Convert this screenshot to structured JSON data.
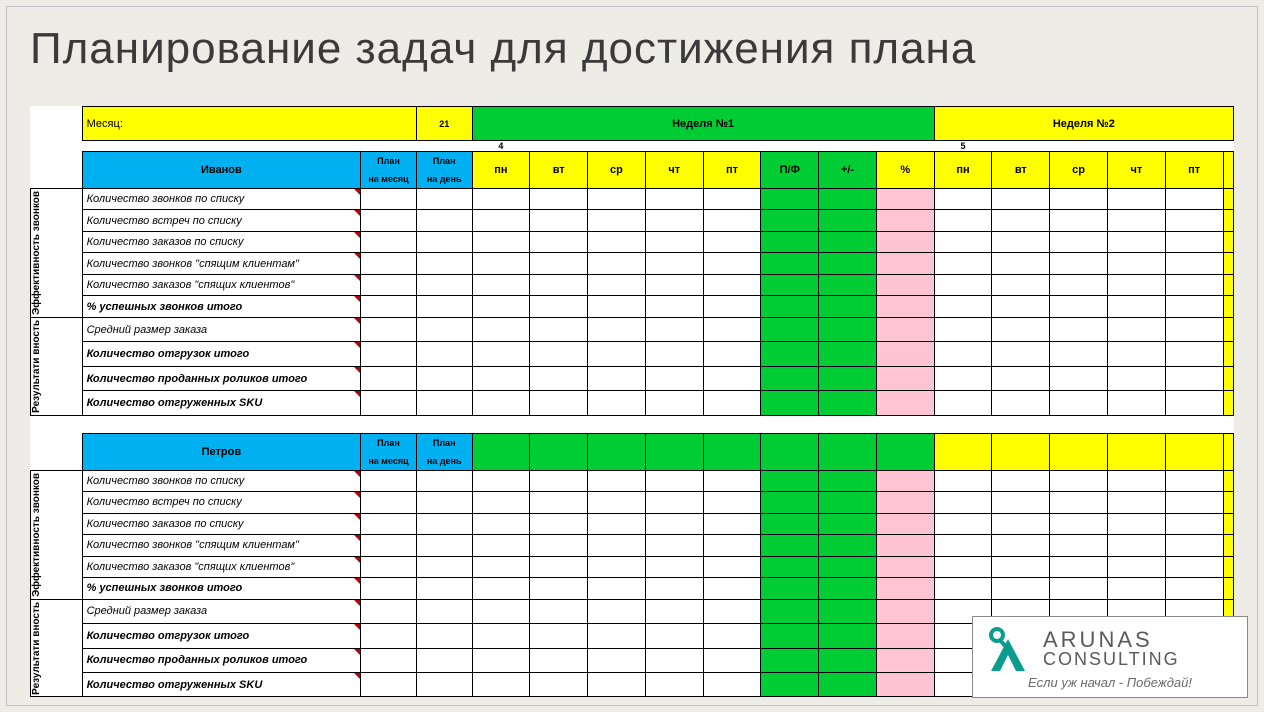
{
  "title": "Планирование задач для достижения плана",
  "header": {
    "month_label": "Месяц:",
    "days_value": "21",
    "week1_label": "Неделя №1",
    "week2_label": "Неделя №2",
    "week1_num": "4",
    "week2_num": "5",
    "plan_month": "План на месяц",
    "plan_day": "План на день",
    "days": [
      "пн",
      "вт",
      "ср",
      "чт",
      "пт"
    ],
    "pf": "П/Ф",
    "pm": "+/-",
    "pct": "%"
  },
  "colors": {
    "yellow": "#ffff00",
    "green": "#00cc33",
    "pink": "#ffc4d3",
    "cyan": "#00b0f0",
    "bg": "#eeece6"
  },
  "employees": [
    "Иванов",
    "Петров"
  ],
  "sections": [
    {
      "label": "Эффективность звонков",
      "metrics": [
        {
          "text": "Количество звонков по списку",
          "bold": false
        },
        {
          "text": "Количество встреч по списку",
          "bold": false
        },
        {
          "text": "Количество заказов по списку",
          "bold": false
        },
        {
          "text": "Количество звонков \"спящим клиентам\"",
          "bold": false
        },
        {
          "text": "Количество заказов \"спящих клиентов\"",
          "bold": false
        },
        {
          "text": "% успешных звонков итого",
          "bold": true
        }
      ]
    },
    {
      "label": "Результати вность",
      "metrics": [
        {
          "text": "Средний размер заказа",
          "bold": false
        },
        {
          "text": "Количество отгрузок итого",
          "bold": true
        },
        {
          "text": "Количество проданных роликов итого",
          "bold": true
        },
        {
          "text": "Количество отгруженных SKU",
          "bold": true
        }
      ]
    }
  ],
  "footer": {
    "brand_line1": "ARUNAS",
    "brand_line2": "CONSULTING",
    "tagline": "Если уж начал - Побеждай!",
    "logo_color": "#0a9d8e"
  }
}
